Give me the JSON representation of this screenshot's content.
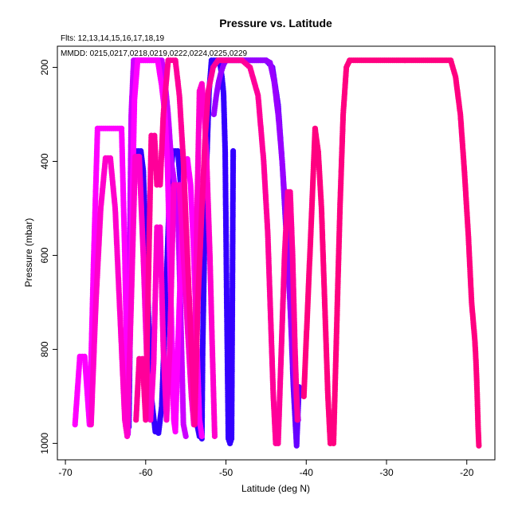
{
  "chart_data": {
    "type": "scatter",
    "title": "Pressure vs. Latitude",
    "xlabel": "Latitude (deg N)",
    "ylabel": "Pressure (mbar)",
    "annotations": [
      "Flts: 12,13,14,15,16,17,18,19",
      "MMDD: 0215,0217,0218,0219,0222,0224,0225,0229"
    ],
    "xlim": [
      -71,
      -16.5
    ],
    "ylim": [
      1035,
      155
    ],
    "y_reversed": true,
    "xticks": [
      -70,
      -60,
      -50,
      -40,
      -30,
      -20
    ],
    "yticks": [
      200,
      400,
      600,
      800,
      1000
    ],
    "grid": false,
    "series": [
      {
        "color": "#3300ff",
        "points": [
          [
            -62.5,
            955
          ],
          [
            -62.3,
            970
          ],
          [
            -62.1,
            965
          ],
          [
            -61.8,
            600
          ],
          [
            -61.4,
            400
          ],
          [
            -61.2,
            378
          ],
          [
            -60.6,
            378
          ],
          [
            -60.3,
            420
          ],
          [
            -59.8,
            650
          ],
          [
            -59.3,
            900
          ],
          [
            -58.8,
            975
          ],
          [
            -58.4,
            978
          ],
          [
            -58.0,
            920
          ],
          [
            -57.5,
            700
          ],
          [
            -57.0,
            450
          ],
          [
            -56.6,
            378
          ],
          [
            -56.0,
            378
          ],
          [
            -55.4,
            500
          ],
          [
            -54.7,
            750
          ],
          [
            -54.0,
            930
          ],
          [
            -53.6,
            960
          ],
          [
            -53.3,
            985
          ],
          [
            -53.0,
            990
          ],
          [
            -52.9,
            800
          ],
          [
            -52.7,
            600
          ],
          [
            -52.4,
            400
          ],
          [
            -52.1,
            250
          ],
          [
            -51.8,
            185
          ],
          [
            -51.2,
            185
          ],
          [
            -50.8,
            185
          ],
          [
            -50.5,
            220
          ],
          [
            -50.3,
            255
          ],
          [
            -50.1,
            378
          ],
          [
            -49.9,
            700
          ],
          [
            -49.7,
            990
          ],
          [
            -49.5,
            1000
          ],
          [
            -49.3,
            990
          ],
          [
            -49.1,
            378
          ]
        ]
      },
      {
        "color": "#6600ff",
        "points": [
          [
            -50.6,
            185
          ],
          [
            -45.0,
            185
          ],
          [
            -44.2,
            200
          ],
          [
            -43.5,
            280
          ],
          [
            -43.0,
            400
          ],
          [
            -42.5,
            550
          ],
          [
            -42.0,
            700
          ],
          [
            -41.6,
            880
          ],
          [
            -41.2,
            1005
          ],
          [
            -40.9,
            880
          ]
        ]
      },
      {
        "color": "#9900ff",
        "points": [
          [
            -51.5,
            300
          ],
          [
            -51.2,
            260
          ],
          [
            -50.9,
            230
          ],
          [
            -50.6,
            210
          ],
          [
            -50.3,
            195
          ],
          [
            -50.0,
            185
          ],
          [
            -45.0,
            185
          ],
          [
            -44.5,
            190
          ],
          [
            -44.0,
            230
          ],
          [
            -43.5,
            300
          ],
          [
            -43.0,
            400
          ],
          [
            -42.6,
            500
          ],
          [
            -42.2,
            640
          ],
          [
            -41.8,
            780
          ],
          [
            -41.4,
            880
          ],
          [
            -41.0,
            950
          ]
        ]
      },
      {
        "color": "#cc00ff",
        "points": [
          [
            -62.2,
            980
          ],
          [
            -62.0,
            600
          ],
          [
            -61.8,
            300
          ],
          [
            -61.5,
            185
          ],
          [
            -58.0,
            185
          ],
          [
            -57.6,
            230
          ],
          [
            -57.2,
            300
          ],
          [
            -56.8,
            400
          ],
          [
            -56.4,
            450
          ],
          [
            -56.0,
            500
          ],
          [
            -55.6,
            750
          ],
          [
            -55.3,
            960
          ],
          [
            -55.0,
            985
          ]
        ]
      },
      {
        "color": "#ff00ff",
        "points": [
          [
            -68.8,
            960
          ],
          [
            -68.2,
            815
          ],
          [
            -67.6,
            815
          ],
          [
            -67.0,
            960
          ],
          [
            -66.5,
            620
          ],
          [
            -66.0,
            330
          ],
          [
            -63.5,
            330
          ],
          [
            -63.0,
            330
          ],
          [
            -62.6,
            600
          ],
          [
            -62.2,
            950
          ],
          [
            -61.8,
            600
          ],
          [
            -61.4,
            270
          ],
          [
            -61.0,
            185
          ],
          [
            -58.5,
            185
          ],
          [
            -58.0,
            240
          ],
          [
            -57.6,
            300
          ],
          [
            -57.3,
            400
          ],
          [
            -57.0,
            600
          ],
          [
            -56.7,
            800
          ],
          [
            -56.5,
            950
          ],
          [
            -56.3,
            975
          ],
          [
            -56.0,
            800
          ],
          [
            -55.6,
            600
          ],
          [
            -55.2,
            395
          ],
          [
            -54.8,
            395
          ],
          [
            -54.4,
            450
          ],
          [
            -54.0,
            600
          ],
          [
            -53.6,
            800
          ],
          [
            -53.3,
            950
          ],
          [
            -53.0,
            985
          ]
        ]
      },
      {
        "color": "#ff00cc",
        "points": [
          [
            -66.8,
            960
          ],
          [
            -66.2,
            700
          ],
          [
            -65.6,
            500
          ],
          [
            -65.0,
            393
          ],
          [
            -64.4,
            393
          ],
          [
            -63.8,
            500
          ],
          [
            -63.4,
            650
          ],
          [
            -63.0,
            800
          ],
          [
            -62.6,
            950
          ],
          [
            -62.3,
            985
          ],
          [
            -61.8,
            700
          ],
          [
            -61.3,
            390
          ],
          [
            -60.8,
            390
          ],
          [
            -60.3,
            600
          ],
          [
            -59.8,
            850
          ],
          [
            -59.4,
            950
          ],
          [
            -59.0,
            830
          ],
          [
            -58.6,
            540
          ],
          [
            -58.2,
            540
          ],
          [
            -57.8,
            800
          ],
          [
            -57.4,
            950
          ],
          [
            -57.0,
            800
          ],
          [
            -56.5,
            450
          ],
          [
            -55.8,
            450
          ],
          [
            -55.3,
            600
          ],
          [
            -54.8,
            750
          ],
          [
            -54.3,
            900
          ],
          [
            -54.0,
            960
          ],
          [
            -53.6,
            500
          ],
          [
            -53.3,
            250
          ],
          [
            -53.0,
            235
          ],
          [
            -52.7,
            300
          ],
          [
            -52.4,
            400
          ],
          [
            -52.0,
            600
          ],
          [
            -51.7,
            800
          ],
          [
            -51.4,
            985
          ]
        ]
      },
      {
        "color": "#ff0099",
        "points": [
          [
            -61.2,
            950
          ],
          [
            -60.8,
            820
          ],
          [
            -60.4,
            820
          ],
          [
            -60.0,
            950
          ],
          [
            -59.6,
            600
          ],
          [
            -59.3,
            345
          ],
          [
            -58.9,
            345
          ],
          [
            -58.6,
            450
          ],
          [
            -58.2,
            450
          ],
          [
            -57.8,
            300
          ],
          [
            -57.2,
            185
          ],
          [
            -56.3,
            185
          ],
          [
            -55.8,
            260
          ],
          [
            -55.3,
            400
          ],
          [
            -54.8,
            600
          ],
          [
            -54.3,
            800
          ],
          [
            -53.9,
            960
          ],
          [
            -53.5,
            700
          ],
          [
            -53.0,
            500
          ],
          [
            -52.6,
            350
          ],
          [
            -52.2,
            250
          ],
          [
            -51.6,
            200
          ],
          [
            -51.0,
            185
          ],
          [
            -48.0,
            185
          ],
          [
            -47.0,
            200
          ],
          [
            -46.0,
            260
          ],
          [
            -45.3,
            400
          ],
          [
            -44.8,
            550
          ],
          [
            -44.4,
            750
          ],
          [
            -44.1,
            900
          ],
          [
            -43.8,
            1000
          ],
          [
            -43.5,
            1000
          ],
          [
            -43.1,
            800
          ],
          [
            -42.7,
            600
          ],
          [
            -42.3,
            465
          ],
          [
            -42.0,
            465
          ],
          [
            -41.7,
            600
          ],
          [
            -41.4,
            800
          ],
          [
            -41.1,
            950
          ]
        ]
      },
      {
        "color": "#ff0080",
        "points": [
          [
            -40.3,
            900
          ],
          [
            -39.8,
            700
          ],
          [
            -39.3,
            500
          ],
          [
            -38.9,
            330
          ],
          [
            -38.5,
            380
          ],
          [
            -38.1,
            500
          ],
          [
            -37.7,
            700
          ],
          [
            -37.3,
            900
          ],
          [
            -37.0,
            1000
          ],
          [
            -36.6,
            1000
          ],
          [
            -36.2,
            750
          ],
          [
            -35.8,
            500
          ],
          [
            -35.4,
            300
          ],
          [
            -35.0,
            200
          ],
          [
            -34.6,
            185
          ],
          [
            -22.0,
            185
          ],
          [
            -21.4,
            220
          ],
          [
            -20.8,
            300
          ],
          [
            -20.3,
            420
          ],
          [
            -19.8,
            560
          ],
          [
            -19.4,
            700
          ],
          [
            -19.0,
            780
          ],
          [
            -18.9,
            810
          ],
          [
            -18.8,
            850
          ],
          [
            -18.7,
            900
          ],
          [
            -18.6,
            960
          ],
          [
            -18.5,
            1005
          ]
        ]
      }
    ]
  }
}
